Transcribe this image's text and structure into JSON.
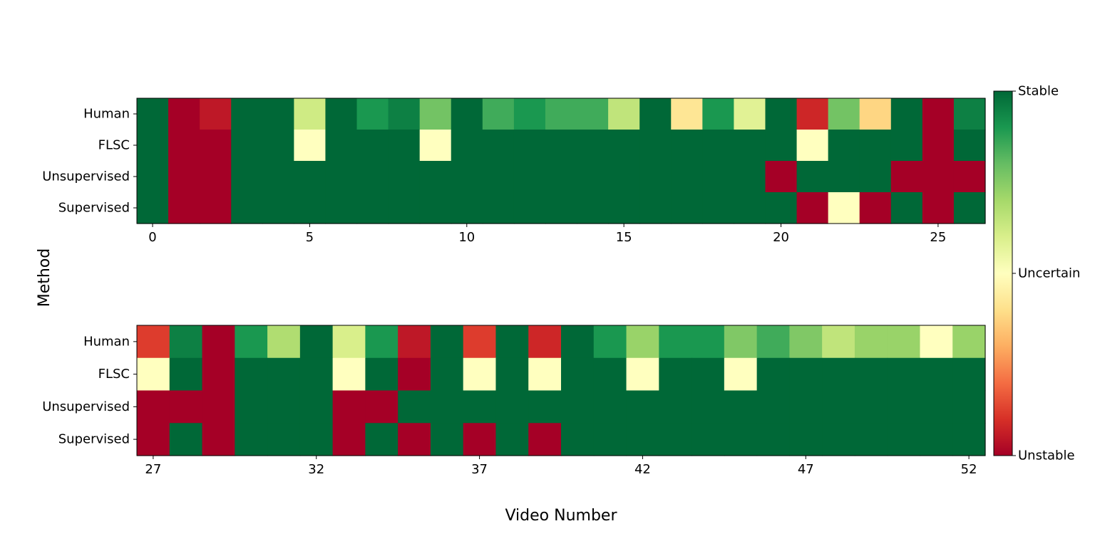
{
  "chart_data": {
    "type": "heatmap",
    "ylabel": "Method",
    "xlabel": "Video Number",
    "rows": [
      "Human",
      "FLSC",
      "Unsupervised",
      "Supervised"
    ],
    "colorbar": {
      "colormap": "RdYlGn",
      "range": [
        0,
        1
      ],
      "ticks": [
        {
          "value": 1,
          "label": "Stable"
        },
        {
          "value": 0.5,
          "label": "Uncertain"
        },
        {
          "value": 0,
          "label": "Unstable"
        }
      ]
    },
    "panels": [
      {
        "x_start": 0,
        "x_ticks": [
          "0",
          "5",
          "10",
          "15",
          "20",
          "25"
        ],
        "values": [
          [
            1.0,
            0.0,
            0.05,
            1.0,
            1.0,
            0.62,
            1.0,
            0.9,
            0.95,
            0.78,
            1.0,
            0.85,
            0.9,
            0.85,
            0.85,
            0.65,
            1.0,
            0.42,
            0.9,
            0.58,
            1.0,
            0.08,
            0.78,
            0.38,
            1.0,
            0.0,
            0.95
          ],
          [
            1.0,
            0.0,
            0.0,
            1.0,
            1.0,
            0.5,
            1.0,
            1.0,
            1.0,
            0.5,
            1.0,
            1.0,
            1.0,
            1.0,
            1.0,
            1.0,
            1.0,
            1.0,
            1.0,
            1.0,
            1.0,
            0.5,
            1.0,
            1.0,
            1.0,
            0.0,
            1.0
          ],
          [
            1.0,
            0.0,
            0.0,
            1.0,
            1.0,
            1.0,
            1.0,
            1.0,
            1.0,
            1.0,
            1.0,
            1.0,
            1.0,
            1.0,
            1.0,
            1.0,
            1.0,
            1.0,
            1.0,
            1.0,
            0.0,
            1.0,
            1.0,
            1.0,
            0.0,
            0.0,
            0.0
          ],
          [
            1.0,
            0.0,
            0.0,
            1.0,
            1.0,
            1.0,
            1.0,
            1.0,
            1.0,
            1.0,
            1.0,
            1.0,
            1.0,
            1.0,
            1.0,
            1.0,
            1.0,
            1.0,
            1.0,
            1.0,
            1.0,
            0.0,
            0.5,
            0.0,
            1.0,
            0.0,
            1.0
          ]
        ]
      },
      {
        "x_start": 27,
        "x_ticks": [
          "27",
          "32",
          "37",
          "42",
          "47",
          "52"
        ],
        "values": [
          [
            0.12,
            0.95,
            0.0,
            0.9,
            0.68,
            1.0,
            0.6,
            0.9,
            0.05,
            1.0,
            0.12,
            1.0,
            0.08,
            1.0,
            0.9,
            0.72,
            0.9,
            0.9,
            0.76,
            0.85,
            0.76,
            0.65,
            0.72,
            0.72,
            0.5,
            0.72
          ],
          [
            0.5,
            1.0,
            0.0,
            1.0,
            1.0,
            1.0,
            0.5,
            1.0,
            0.0,
            1.0,
            0.5,
            1.0,
            0.5,
            1.0,
            1.0,
            0.5,
            1.0,
            1.0,
            0.5,
            1.0,
            1.0,
            1.0,
            1.0,
            1.0,
            1.0,
            1.0
          ],
          [
            0.0,
            0.0,
            0.0,
            1.0,
            1.0,
            1.0,
            0.0,
            0.0,
            1.0,
            1.0,
            1.0,
            1.0,
            1.0,
            1.0,
            1.0,
            1.0,
            1.0,
            1.0,
            1.0,
            1.0,
            1.0,
            1.0,
            1.0,
            1.0,
            1.0,
            1.0
          ],
          [
            0.0,
            1.0,
            0.0,
            1.0,
            1.0,
            1.0,
            0.0,
            1.0,
            0.0,
            1.0,
            0.0,
            1.0,
            0.0,
            1.0,
            1.0,
            1.0,
            1.0,
            1.0,
            1.0,
            1.0,
            1.0,
            1.0,
            1.0,
            1.0,
            1.0,
            1.0
          ]
        ]
      }
    ]
  }
}
